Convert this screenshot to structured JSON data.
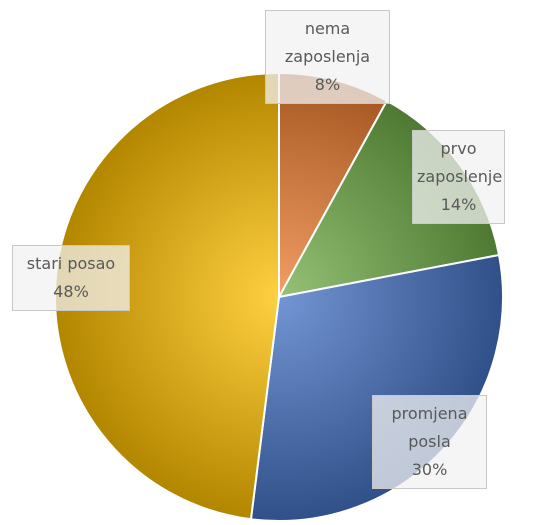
{
  "chart_data": {
    "type": "pie",
    "categories": [
      "nema zaposlenja",
      "prvo zaposlenje",
      "promjena posla",
      "stari posao"
    ],
    "values": [
      8,
      14,
      30,
      48
    ],
    "value_labels": [
      "8%",
      "14%",
      "30%",
      "48%"
    ],
    "colors": [
      "#ED7D31",
      "#70AD47",
      "#4472C4",
      "#FFC000"
    ]
  }
}
